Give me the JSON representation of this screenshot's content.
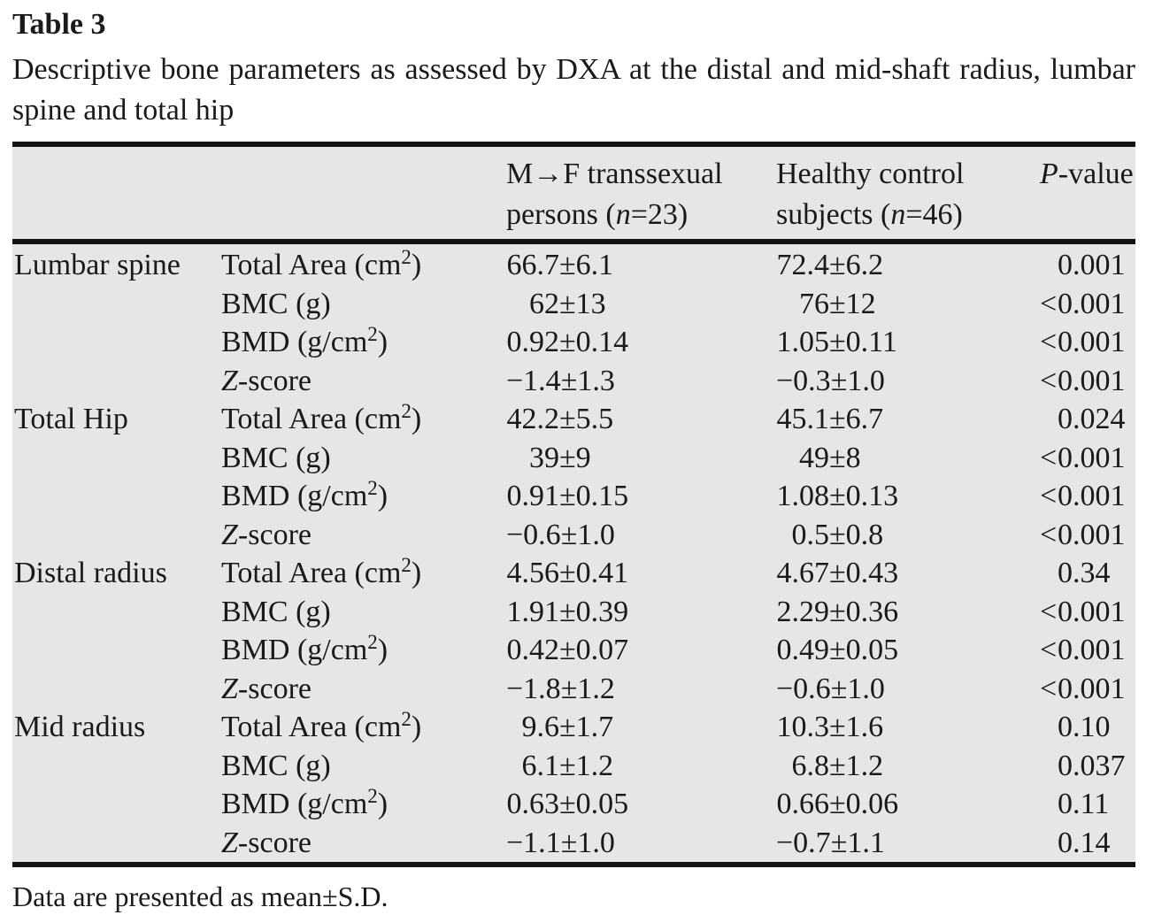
{
  "page": {
    "label": "Table 3",
    "caption": "Descriptive bone parameters as assessed by DXA at the distal and mid-shaft radius, lumbar spine and total hip",
    "footnote": "Data are presented as mean±S.D."
  },
  "table": {
    "pm": "±",
    "colors": {
      "table_bg": "#e6e6e8",
      "rule": "#141414",
      "text": "#1a1a1a"
    },
    "header": {
      "group_mtf": {
        "line1": "M→F transsexual",
        "line2_pre": "persons (",
        "line2_n": "n",
        "line2_post": "=23)"
      },
      "group_ctrl": {
        "line1": "Healthy control",
        "line2_pre": "subjects (",
        "line2_n": "n",
        "line2_post": "=46)"
      },
      "p": {
        "italic": "P",
        "rest": "-value"
      }
    },
    "rows": [
      {
        "region": "Lumbar spine",
        "param": {
          "ipre": "",
          "text": "Total Area (cm",
          "sup": "2",
          "post": ")"
        },
        "mtf": {
          "mean": "66.7",
          "sd": "6.1"
        },
        "ctrl": {
          "mean": "72.4",
          "sd": "6.2"
        },
        "p": {
          "lt": "",
          "val": "0.001"
        }
      },
      {
        "region": "",
        "param": {
          "ipre": "",
          "text": "BMC (g)",
          "sup": "",
          "post": ""
        },
        "mtf": {
          "mean": "62",
          "sd": "13"
        },
        "ctrl": {
          "mean": "76",
          "sd": "12"
        },
        "p": {
          "lt": "<",
          "val": "0.001"
        }
      },
      {
        "region": "",
        "param": {
          "ipre": "",
          "text": "BMD (g/cm",
          "sup": "2",
          "post": ")"
        },
        "mtf": {
          "mean": "0.92",
          "sd": "0.14"
        },
        "ctrl": {
          "mean": "1.05",
          "sd": "0.11"
        },
        "p": {
          "lt": "<",
          "val": "0.001"
        }
      },
      {
        "region": "",
        "param": {
          "ipre": "Z",
          "text": "-score",
          "sup": "",
          "post": ""
        },
        "mtf": {
          "mean": "−1.4",
          "sd": "1.3"
        },
        "ctrl": {
          "mean": "−0.3",
          "sd": "1.0"
        },
        "p": {
          "lt": "<",
          "val": "0.001"
        }
      },
      {
        "region": "Total Hip",
        "param": {
          "ipre": "",
          "text": "Total Area (cm",
          "sup": "2",
          "post": ")"
        },
        "mtf": {
          "mean": "42.2",
          "sd": "5.5"
        },
        "ctrl": {
          "mean": "45.1",
          "sd": "6.7"
        },
        "p": {
          "lt": "",
          "val": "0.024"
        }
      },
      {
        "region": "",
        "param": {
          "ipre": "",
          "text": "BMC (g)",
          "sup": "",
          "post": ""
        },
        "mtf": {
          "mean": "39",
          "sd": "9"
        },
        "ctrl": {
          "mean": "49",
          "sd": "8"
        },
        "p": {
          "lt": "<",
          "val": "0.001"
        }
      },
      {
        "region": "",
        "param": {
          "ipre": "",
          "text": "BMD (g/cm",
          "sup": "2",
          "post": ")"
        },
        "mtf": {
          "mean": "0.91",
          "sd": "0.15"
        },
        "ctrl": {
          "mean": "1.08",
          "sd": "0.13"
        },
        "p": {
          "lt": "<",
          "val": "0.001"
        }
      },
      {
        "region": "",
        "param": {
          "ipre": "Z",
          "text": "-score",
          "sup": "",
          "post": ""
        },
        "mtf": {
          "mean": "−0.6",
          "sd": "1.0"
        },
        "ctrl": {
          "mean": "0.5",
          "sd": "0.8"
        },
        "p": {
          "lt": "<",
          "val": "0.001"
        }
      },
      {
        "region": "Distal radius",
        "param": {
          "ipre": "",
          "text": "Total Area (cm",
          "sup": "2",
          "post": ")"
        },
        "mtf": {
          "mean": "4.56",
          "sd": "0.41"
        },
        "ctrl": {
          "mean": "4.67",
          "sd": "0.43"
        },
        "p": {
          "lt": "",
          "val": "0.34"
        }
      },
      {
        "region": "",
        "param": {
          "ipre": "",
          "text": "BMC (g)",
          "sup": "",
          "post": ""
        },
        "mtf": {
          "mean": "1.91",
          "sd": "0.39"
        },
        "ctrl": {
          "mean": "2.29",
          "sd": "0.36"
        },
        "p": {
          "lt": "<",
          "val": "0.001"
        }
      },
      {
        "region": "",
        "param": {
          "ipre": "",
          "text": "BMD (g/cm",
          "sup": "2",
          "post": ")"
        },
        "mtf": {
          "mean": "0.42",
          "sd": "0.07"
        },
        "ctrl": {
          "mean": "0.49",
          "sd": "0.05"
        },
        "p": {
          "lt": "<",
          "val": "0.001"
        }
      },
      {
        "region": "",
        "param": {
          "ipre": "Z",
          "text": "-score",
          "sup": "",
          "post": ""
        },
        "mtf": {
          "mean": "−1.8",
          "sd": "1.2"
        },
        "ctrl": {
          "mean": "−0.6",
          "sd": "1.0"
        },
        "p": {
          "lt": "<",
          "val": "0.001"
        }
      },
      {
        "region": "Mid radius",
        "param": {
          "ipre": "",
          "text": "Total Area (cm",
          "sup": "2",
          "post": ")"
        },
        "mtf": {
          "mean": "9.6",
          "sd": "1.7"
        },
        "ctrl": {
          "mean": "10.3",
          "sd": "1.6"
        },
        "p": {
          "lt": "",
          "val": "0.10"
        }
      },
      {
        "region": "",
        "param": {
          "ipre": "",
          "text": "BMC (g)",
          "sup": "",
          "post": ""
        },
        "mtf": {
          "mean": "6.1",
          "sd": "1.2"
        },
        "ctrl": {
          "mean": "6.8",
          "sd": "1.2"
        },
        "p": {
          "lt": "",
          "val": "0.037"
        }
      },
      {
        "region": "",
        "param": {
          "ipre": "",
          "text": "BMD (g/cm",
          "sup": "2",
          "post": ")"
        },
        "mtf": {
          "mean": "0.63",
          "sd": "0.05"
        },
        "ctrl": {
          "mean": "0.66",
          "sd": "0.06"
        },
        "p": {
          "lt": "",
          "val": "0.11"
        }
      },
      {
        "region": "",
        "param": {
          "ipre": "Z",
          "text": "-score",
          "sup": "",
          "post": ""
        },
        "mtf": {
          "mean": "−1.1",
          "sd": "1.0"
        },
        "ctrl": {
          "mean": "−0.7",
          "sd": "1.1"
        },
        "p": {
          "lt": "",
          "val": "0.14"
        }
      }
    ]
  }
}
